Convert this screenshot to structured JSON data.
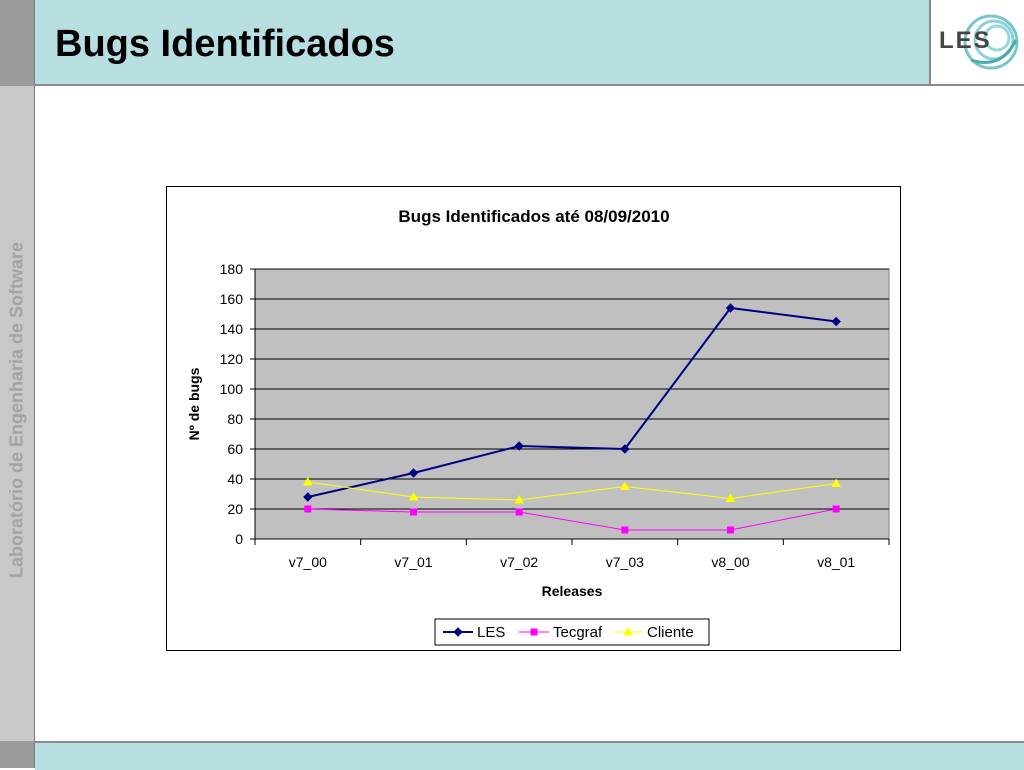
{
  "slide": {
    "title": "Bugs Identificados",
    "sidebar_text": "Laboratório de Engenharia de Software",
    "logo_text": "LES"
  },
  "colors": {
    "header_bg": "#b7dfe1",
    "sidebar_bg": "#c8c8c8",
    "plot_bg": "#c0c0c0",
    "LES": "#000080",
    "Tecgraf": "#ff00ff",
    "Cliente": "#ffff00"
  },
  "chart_data": {
    "type": "line",
    "title": "Bugs Identificados até 08/09/2010",
    "xlabel": "Releases",
    "ylabel": "Nº de bugs",
    "categories": [
      "v7_00",
      "v7_01",
      "v7_02",
      "v7_03",
      "v8_00",
      "v8_01"
    ],
    "ylim": [
      0,
      180
    ],
    "yticks": [
      0,
      20,
      40,
      60,
      80,
      100,
      120,
      140,
      160,
      180
    ],
    "grid": true,
    "legend_position": "bottom",
    "series": [
      {
        "name": "LES",
        "values": [
          28,
          44,
          62,
          60,
          154,
          145
        ],
        "color": "#000080",
        "marker": "diamond"
      },
      {
        "name": "Tecgraf",
        "values": [
          20,
          18,
          18,
          6,
          6,
          20
        ],
        "color": "#ff00ff",
        "marker": "square"
      },
      {
        "name": "Cliente",
        "values": [
          38,
          28,
          26,
          35,
          27,
          37
        ],
        "color": "#ffff00",
        "marker": "triangle"
      }
    ]
  }
}
